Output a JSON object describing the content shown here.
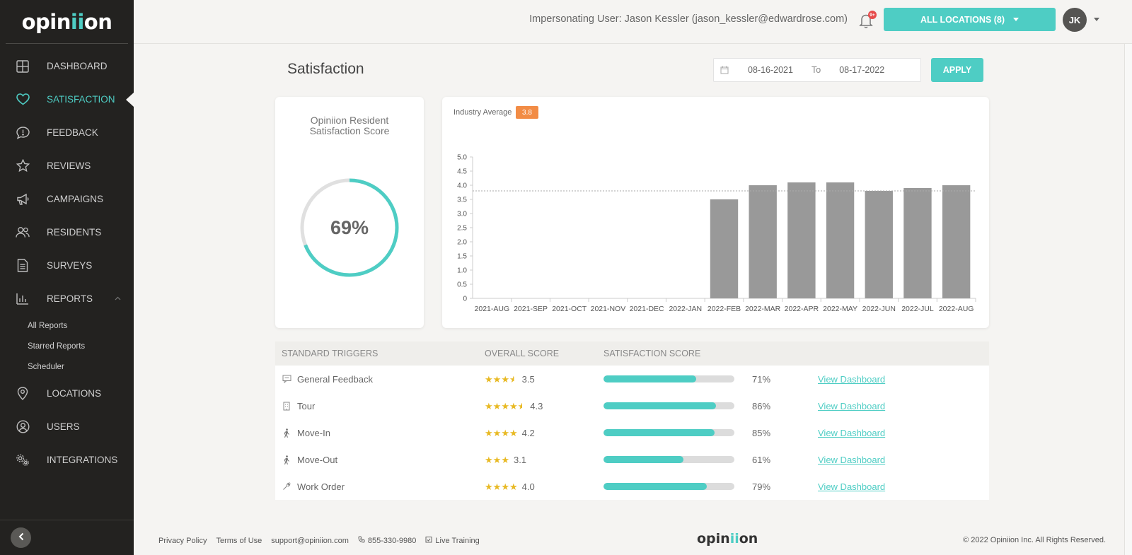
{
  "app": {
    "logo_text": "opiniion"
  },
  "sidebar": {
    "items": [
      {
        "label": "DASHBOARD",
        "icon": "grid-icon"
      },
      {
        "label": "SATISFACTION",
        "icon": "heart-icon"
      },
      {
        "label": "FEEDBACK",
        "icon": "chat-alert-icon"
      },
      {
        "label": "REVIEWS",
        "icon": "star-icon"
      },
      {
        "label": "CAMPAIGNS",
        "icon": "megaphone-icon"
      },
      {
        "label": "RESIDENTS",
        "icon": "users-icon"
      },
      {
        "label": "SURVEYS",
        "icon": "document-icon"
      },
      {
        "label": "REPORTS",
        "icon": "bar-chart-icon"
      },
      {
        "label": "LOCATIONS",
        "icon": "map-pin-icon"
      },
      {
        "label": "USERS",
        "icon": "user-circle-icon"
      },
      {
        "label": "INTEGRATIONS",
        "icon": "gears-icon"
      }
    ],
    "reports_sub": [
      "All Reports",
      "Starred Reports",
      "Scheduler"
    ]
  },
  "header": {
    "impersonating": "Impersonating User: Jason Kessler (jason_kessler@edwardrose.com)",
    "bell_badge": "9+",
    "locations_button": "ALL LOCATIONS (8)",
    "avatar_initials": "JK"
  },
  "page": {
    "title": "Satisfaction",
    "date_from": "08-16-2021",
    "date_to": "08-17-2022",
    "to_label": "To",
    "apply_label": "APPLY"
  },
  "score_card": {
    "title": "Opiniion Resident Satisfaction Score",
    "percent_label": "69%",
    "percent_value": 69,
    "accent": "#4ecdc4",
    "track": "#e0e0e0"
  },
  "chart_data": {
    "type": "bar",
    "industry_average_label": "Industry Average",
    "industry_average": 3.8,
    "categories": [
      "2021-AUG",
      "2021-SEP",
      "2021-OCT",
      "2021-NOV",
      "2021-DEC",
      "2022-JAN",
      "2022-FEB",
      "2022-MAR",
      "2022-APR",
      "2022-MAY",
      "2022-JUN",
      "2022-JUL",
      "2022-AUG"
    ],
    "values": [
      null,
      null,
      null,
      null,
      null,
      null,
      3.5,
      4.0,
      4.1,
      4.1,
      3.8,
      3.9,
      4.0
    ],
    "ylim": [
      0,
      5
    ],
    "yticks": [
      "0",
      "0.5",
      "1.0",
      "1.5",
      "2.0",
      "2.5",
      "3.0",
      "3.5",
      "4.0",
      "4.5",
      "5.0"
    ],
    "bar_color": "#999999",
    "badge_color": "#f28c45"
  },
  "table": {
    "headers": [
      "STANDARD TRIGGERS",
      "OVERALL SCORE",
      "SATISFACTION SCORE"
    ],
    "rows": [
      {
        "icon": "chat-icon",
        "name": "General Feedback",
        "stars": 3.5,
        "score": "3.5",
        "satisfaction": 71,
        "satisfaction_label": "71%",
        "link": "View Dashboard"
      },
      {
        "icon": "building-icon",
        "name": "Tour",
        "stars": 4.5,
        "score": "4.3",
        "satisfaction": 86,
        "satisfaction_label": "86%",
        "link": "View Dashboard"
      },
      {
        "icon": "walking-icon",
        "name": "Move-In",
        "stars": 4,
        "score": "4.2",
        "satisfaction": 85,
        "satisfaction_label": "85%",
        "link": "View Dashboard"
      },
      {
        "icon": "walking-icon",
        "name": "Move-Out",
        "stars": 3,
        "score": "3.1",
        "satisfaction": 61,
        "satisfaction_label": "61%",
        "link": "View Dashboard"
      },
      {
        "icon": "wrench-icon",
        "name": "Work Order",
        "stars": 4,
        "score": "4.0",
        "satisfaction": 79,
        "satisfaction_label": "79%",
        "link": "View Dashboard"
      }
    ]
  },
  "footer": {
    "privacy": "Privacy Policy",
    "terms": "Terms of Use",
    "email": "support@opiniion.com",
    "phone": "855-330-9980",
    "training": "Live Training",
    "logo_text": "opiniion",
    "copyright": "© 2022 Opiniion Inc. All Rights Reserved."
  }
}
